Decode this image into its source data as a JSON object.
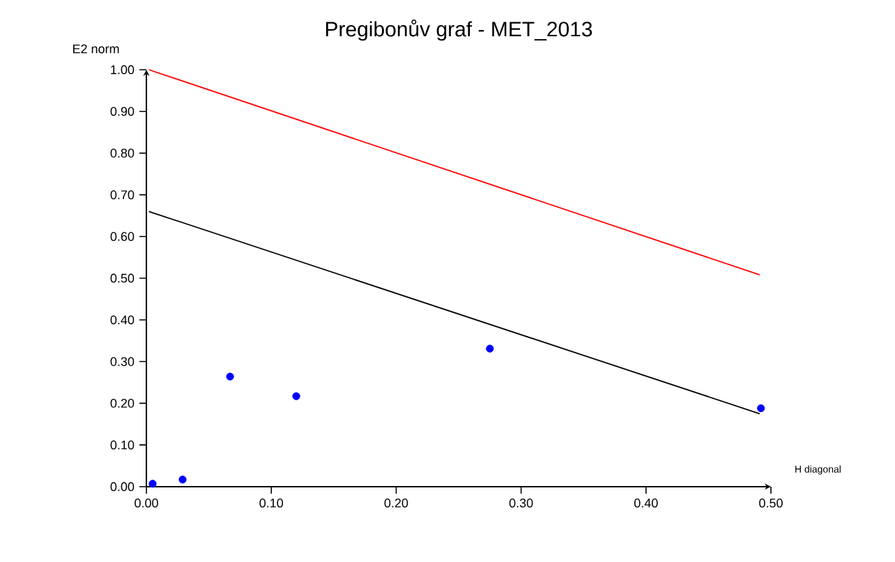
{
  "chart_data": {
    "type": "scatter",
    "title": "Pregibonův graf - MET_2013",
    "xlabel": "H diagonal",
    "ylabel": "E2 norm",
    "grid": false,
    "xlim": [
      0,
      0.5
    ],
    "ylim": [
      0,
      1
    ],
    "xticks": [
      {
        "value": 0,
        "label": "0.00"
      },
      {
        "value": 0.1,
        "label": "0.10"
      },
      {
        "value": 0.2,
        "label": "0.20"
      },
      {
        "value": 0.3,
        "label": "0.30"
      },
      {
        "value": 0.4,
        "label": "0.40"
      },
      {
        "value": 0.5,
        "label": "0.50"
      }
    ],
    "yticks": [
      {
        "value": 0,
        "label": "0.00"
      },
      {
        "value": 0.1,
        "label": "0.10"
      },
      {
        "value": 0.2,
        "label": "0.20"
      },
      {
        "value": 0.3,
        "label": "0.30"
      },
      {
        "value": 0.4,
        "label": "0.40"
      },
      {
        "value": 0.5,
        "label": "0.50"
      },
      {
        "value": 0.6,
        "label": "0.60"
      },
      {
        "value": 0.7,
        "label": "0.70"
      },
      {
        "value": 0.8,
        "label": "0.80"
      },
      {
        "value": 0.9,
        "label": "0.90"
      },
      {
        "value": 1,
        "label": "1.00"
      }
    ],
    "series": [
      {
        "type": "line",
        "marker": "none",
        "color": "#ff0000",
        "x": [
          0.002,
          0.491
        ],
        "values": [
          1.0,
          0.508
        ]
      },
      {
        "type": "line",
        "marker": "none",
        "color": "#000000",
        "x": [
          0.002,
          0.491
        ],
        "values": [
          0.66,
          0.175
        ]
      },
      {
        "type": "scatter",
        "color": "#0000ff",
        "x": [
          0.005,
          0.029,
          0.067,
          0.12,
          0.275,
          0.492
        ],
        "values": [
          0.007,
          0.017,
          0.264,
          0.217,
          0.331,
          0.188
        ],
        "marker": "circle"
      }
    ]
  }
}
